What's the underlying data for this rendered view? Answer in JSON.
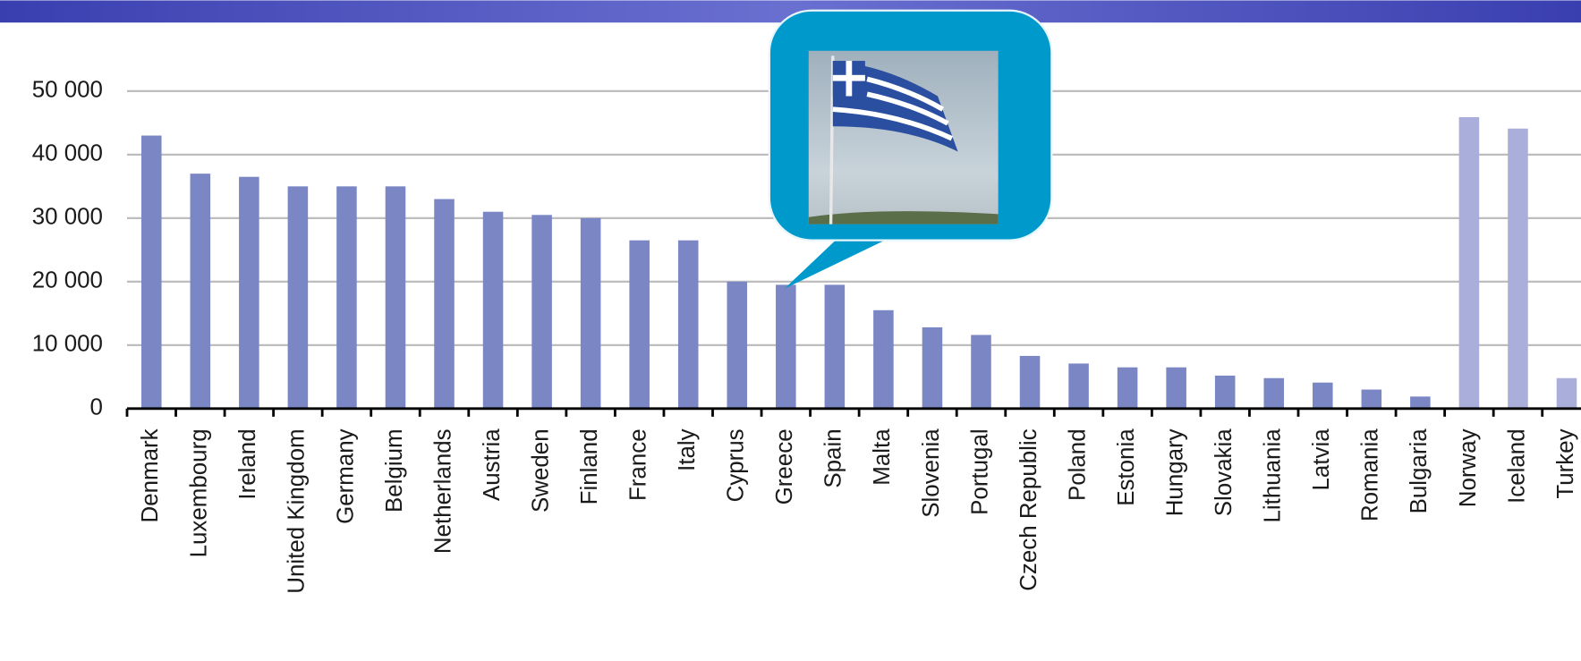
{
  "chart_data": {
    "type": "bar",
    "categories": [
      "Denmark",
      "Luxembourg",
      "Ireland",
      "United Kingdom",
      "Germany",
      "Belgium",
      "Netherlands",
      "Austria",
      "Sweden",
      "Finland",
      "France",
      "Italy",
      "Cyprus",
      "Greece",
      "Spain",
      "Malta",
      "Slovenia",
      "Portugal",
      "Czech Republic",
      "Poland",
      "Estonia",
      "Hungary",
      "Slovakia",
      "Lithuania",
      "Latvia",
      "Romania",
      "Bulgaria",
      "Norway",
      "Iceland",
      "Turkey"
    ],
    "values": [
      43000,
      37000,
      36500,
      35000,
      35000,
      35000,
      33000,
      31000,
      30500,
      30000,
      26500,
      26500,
      20000,
      19500,
      19500,
      15500,
      12800,
      11600,
      8300,
      7100,
      6500,
      6500,
      5200,
      4800,
      4100,
      3000,
      1900,
      45900,
      44100,
      4800
    ],
    "colors": [
      "#7b86c4",
      "#7b86c4",
      "#7b86c4",
      "#7b86c4",
      "#7b86c4",
      "#7b86c4",
      "#7b86c4",
      "#7b86c4",
      "#7b86c4",
      "#7b86c4",
      "#7b86c4",
      "#7b86c4",
      "#7b86c4",
      "#7b86c4",
      "#7b86c4",
      "#7b86c4",
      "#7b86c4",
      "#7b86c4",
      "#7b86c4",
      "#7b86c4",
      "#7b86c4",
      "#7b86c4",
      "#7b86c4",
      "#7b86c4",
      "#7b86c4",
      "#7b86c4",
      "#7b86c4",
      "#a9aedb",
      "#a9aedb",
      "#a9aedb"
    ],
    "ylim": [
      0,
      50000
    ],
    "yticks": [
      0,
      {
        "value": 10000,
        "label": "10 000"
      },
      {
        "value": 20000,
        "label": "20 000"
      },
      {
        "value": 30000,
        "label": "30 000"
      },
      {
        "value": 40000,
        "label": "40 000"
      },
      {
        "value": 50000,
        "label": "50 000"
      }
    ],
    "grid": true
  }
}
